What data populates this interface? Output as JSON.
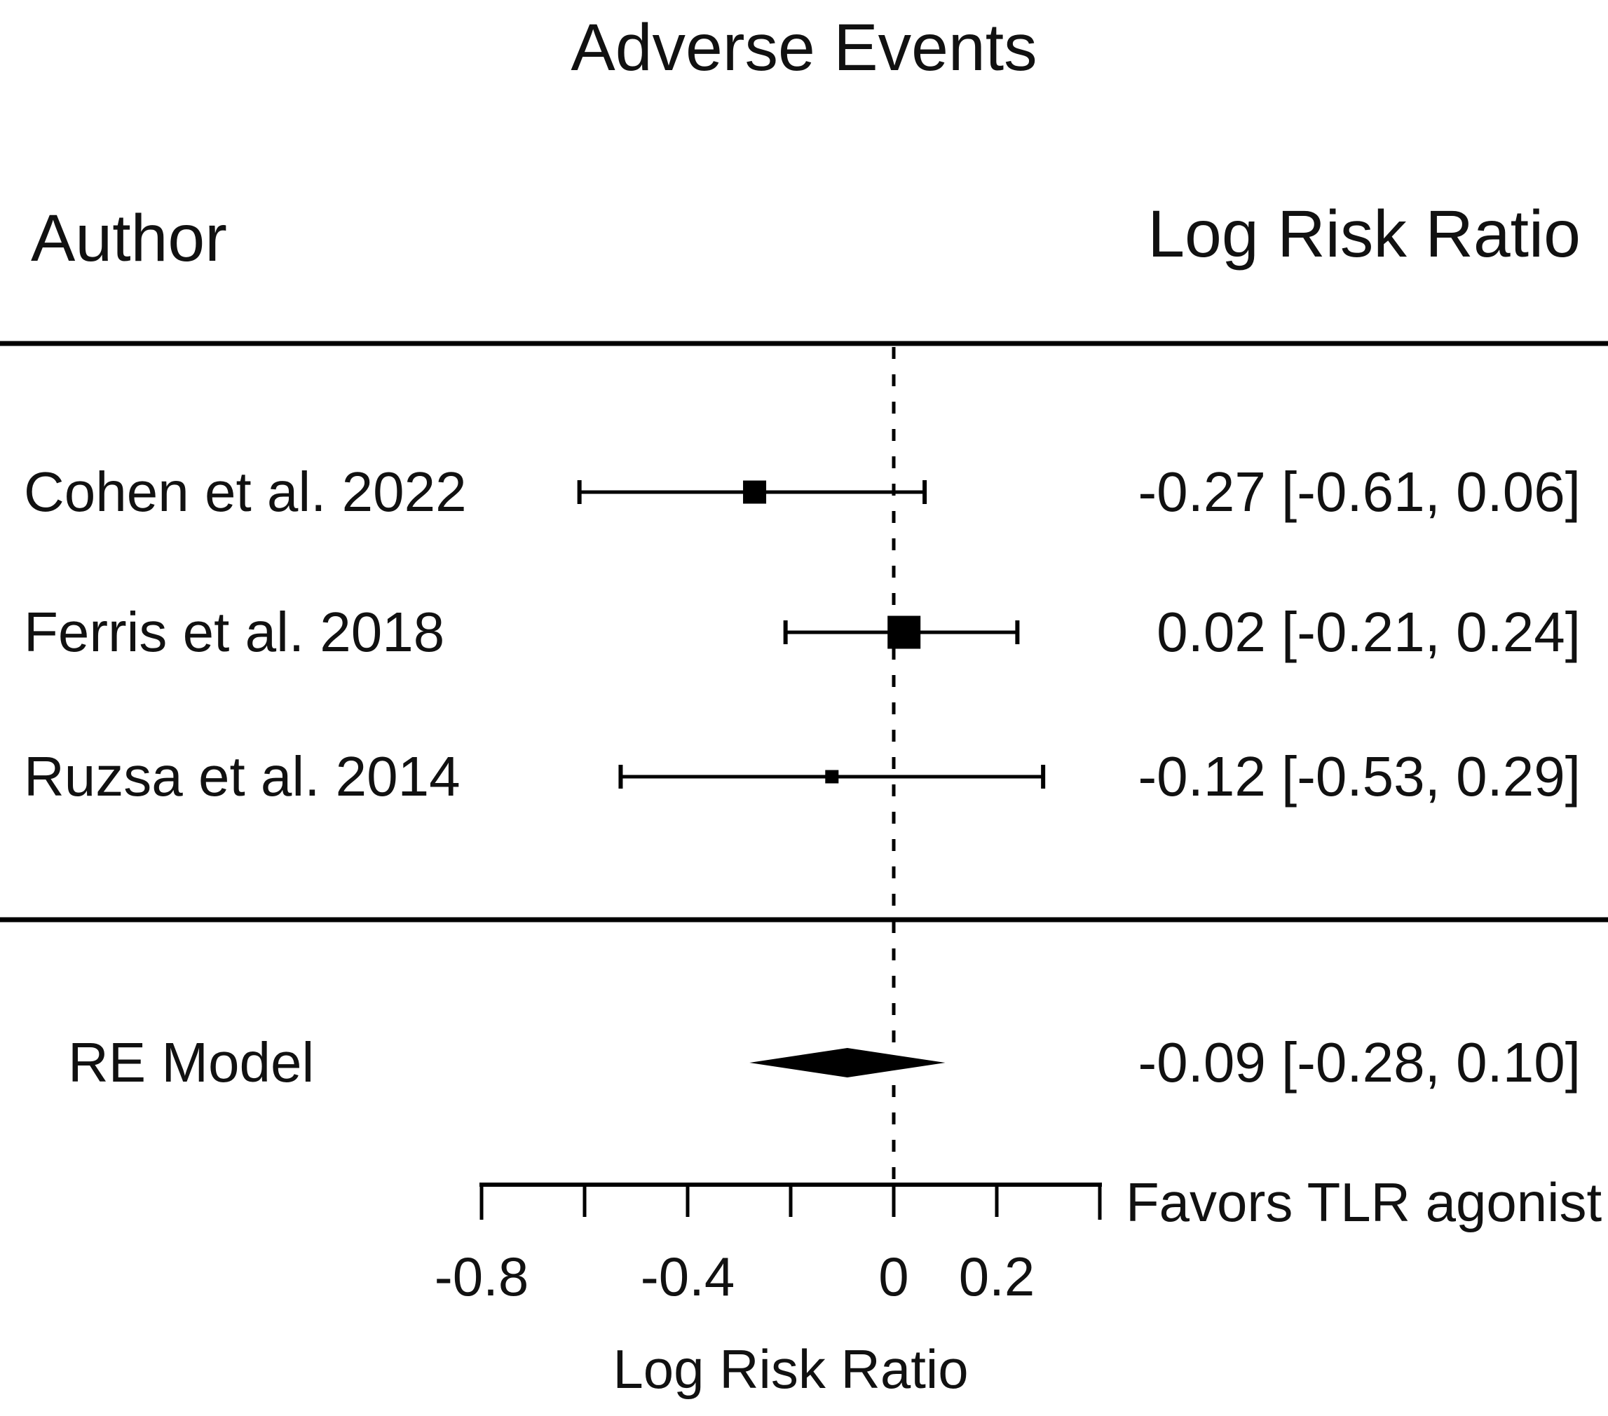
{
  "columns": {
    "author": "Author",
    "effect": "Log Risk Ratio"
  },
  "chart_data": {
    "type": "forest",
    "title": "Adverse Events",
    "xlabel": "Log Risk Ratio",
    "favors_label": "Favors TLR agonist",
    "effect_measure": "Log Risk Ratio",
    "axis": {
      "range": [
        -0.8,
        0.4
      ],
      "ticks": [
        -0.8,
        -0.6,
        -0.4,
        -0.2,
        0,
        0.2,
        0.4
      ],
      "tick_labels": [
        {
          "value": -0.8,
          "label": "-0.8"
        },
        {
          "value": -0.4,
          "label": "-0.4"
        },
        {
          "value": 0,
          "label": "0"
        },
        {
          "value": 0.2,
          "label": "0.2"
        }
      ],
      "reference_line": 0
    },
    "studies": [
      {
        "label": "Cohen et al. 2022",
        "estimate": -0.27,
        "ci_lower": -0.61,
        "ci_upper": 0.06,
        "ci_text": "-0.27 [-0.61, 0.06]",
        "marker_size": 33
      },
      {
        "label": "Ferris et al. 2018",
        "estimate": 0.02,
        "ci_lower": -0.21,
        "ci_upper": 0.24,
        "ci_text": "0.02 [-0.21, 0.24]",
        "marker_size": 47
      },
      {
        "label": "Ruzsa et al. 2014",
        "estimate": -0.12,
        "ci_lower": -0.53,
        "ci_upper": 0.29,
        "ci_text": "-0.12 [-0.53, 0.29]",
        "marker_size": 19
      }
    ],
    "summary": {
      "label": "RE Model",
      "estimate": -0.09,
      "ci_lower": -0.28,
      "ci_upper": 0.1,
      "ci_text": "-0.09 [-0.28, 0.10]"
    },
    "colors": {
      "ink": "#000000",
      "background": "#ffffff"
    }
  }
}
